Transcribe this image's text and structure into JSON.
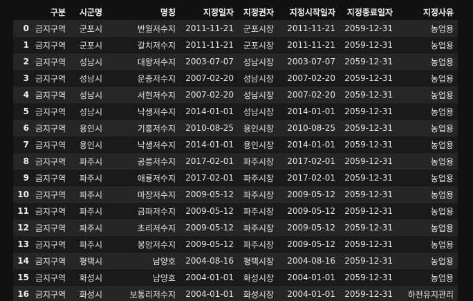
{
  "columns": [
    "",
    "구분",
    "시군명",
    "명칭",
    "지정일자",
    "지정권자",
    "지정시작일자",
    "지정종료일자",
    "지정사유"
  ],
  "rows": [
    [
      "0",
      "금지구역",
      "군포시",
      "반월저수지",
      "2011-11-21",
      "군포시장",
      "2011-11-21",
      "2059-12-31",
      "농업용"
    ],
    [
      "1",
      "금지구역",
      "군포시",
      "갈치저수지",
      "2011-11-21",
      "군포시장",
      "2011-11-21",
      "2059-12-31",
      "농업용"
    ],
    [
      "2",
      "금지구역",
      "성남시",
      "대왕저수지",
      "2003-07-07",
      "성남시장",
      "2003-07-07",
      "2059-12-31",
      "농업용"
    ],
    [
      "3",
      "금지구역",
      "성남시",
      "운중저수지",
      "2007-02-20",
      "성남시장",
      "2007-02-20",
      "2059-12-31",
      "농업용"
    ],
    [
      "4",
      "금지구역",
      "성남시",
      "서현저수지",
      "2007-02-20",
      "성남시장",
      "2007-02-20",
      "2059-12-31",
      "농업용"
    ],
    [
      "5",
      "금지구역",
      "성남시",
      "낙생저수지",
      "2014-01-01",
      "성남시장",
      "2014-01-01",
      "2059-12-31",
      "농업용"
    ],
    [
      "6",
      "금지구역",
      "용인시",
      "기흥저수지",
      "2010-08-25",
      "용인시장",
      "2010-08-25",
      "2059-12-31",
      "농업용"
    ],
    [
      "7",
      "금지구역",
      "용인시",
      "낙생저수지",
      "2014-01-01",
      "용인시장",
      "2014-01-01",
      "2059-12-31",
      "농업용"
    ],
    [
      "8",
      "금지구역",
      "파주시",
      "공릉저수지",
      "2017-02-01",
      "파주시장",
      "2017-02-01",
      "2059-12-31",
      "농업용"
    ],
    [
      "9",
      "금지구역",
      "파주시",
      "애룡저수지",
      "2017-02-01",
      "파주시장",
      "2017-02-01",
      "2059-12-31",
      "농업용"
    ],
    [
      "10",
      "금지구역",
      "파주시",
      "마장저수지",
      "2009-05-12",
      "파주시장",
      "2009-05-12",
      "2059-12-31",
      "농업용"
    ],
    [
      "11",
      "금지구역",
      "파주시",
      "금파저수지",
      "2009-05-12",
      "파주시장",
      "2009-05-12",
      "2059-12-31",
      "농업용"
    ],
    [
      "12",
      "금지구역",
      "파주시",
      "초리저수지",
      "2009-05-12",
      "파주시장",
      "2009-05-12",
      "2059-12-31",
      "농업용"
    ],
    [
      "13",
      "금지구역",
      "파주시",
      "봉암저수지",
      "2009-05-12",
      "파주시장",
      "2009-05-12",
      "2059-12-31",
      "농업용"
    ],
    [
      "14",
      "금지구역",
      "평택시",
      "남양호",
      "2004-08-16",
      "평택시장",
      "2004-08-16",
      "2059-12-31",
      "농업용"
    ],
    [
      "15",
      "금지구역",
      "화성시",
      "남양호",
      "2004-01-01",
      "화성시장",
      "2004-01-01",
      "2059-12-31",
      "농업용"
    ],
    [
      "16",
      "금지구역",
      "화성시",
      "보통리저수지",
      "2004-01-01",
      "화성시장",
      "2004-01-01",
      "2059-12-31",
      "하천유지관리"
    ]
  ]
}
